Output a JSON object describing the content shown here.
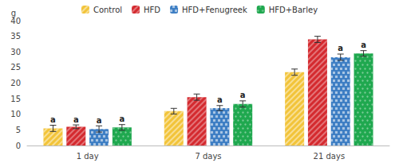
{
  "chart_data": {
    "type": "bar",
    "categories": [
      "1 day",
      "7 days",
      "21 days"
    ],
    "series": [
      {
        "name": "Control",
        "color": "#f2c43a",
        "values": [
          5.5,
          11.0,
          23.5
        ],
        "errors": [
          1.0,
          0.9,
          1.0
        ],
        "annotations": [
          "a",
          null,
          null
        ]
      },
      {
        "name": "HFD",
        "color": "#d42a2f",
        "values": [
          6.0,
          15.5,
          34.0
        ],
        "errors": [
          0.6,
          1.0,
          1.0
        ],
        "annotations": [
          "a",
          null,
          null
        ]
      },
      {
        "name": "HFD+Fenugreek",
        "color": "#3f7fc4",
        "values": [
          5.3,
          12.0,
          28.3
        ],
        "errors": [
          1.0,
          0.8,
          1.0
        ],
        "annotations": [
          "a",
          "a",
          "a"
        ]
      },
      {
        "name": "HFD+Barley",
        "color": "#1fa84f",
        "values": [
          5.8,
          13.3,
          29.5
        ],
        "errors": [
          0.9,
          1.0,
          0.9
        ],
        "annotations": [
          "a",
          "a",
          "a"
        ]
      }
    ],
    "y_label": "g",
    "ylim": [
      0,
      40
    ],
    "yticks": [
      0,
      5,
      10,
      15,
      20,
      25,
      30,
      35,
      40
    ],
    "grid": false,
    "legend": "top"
  }
}
